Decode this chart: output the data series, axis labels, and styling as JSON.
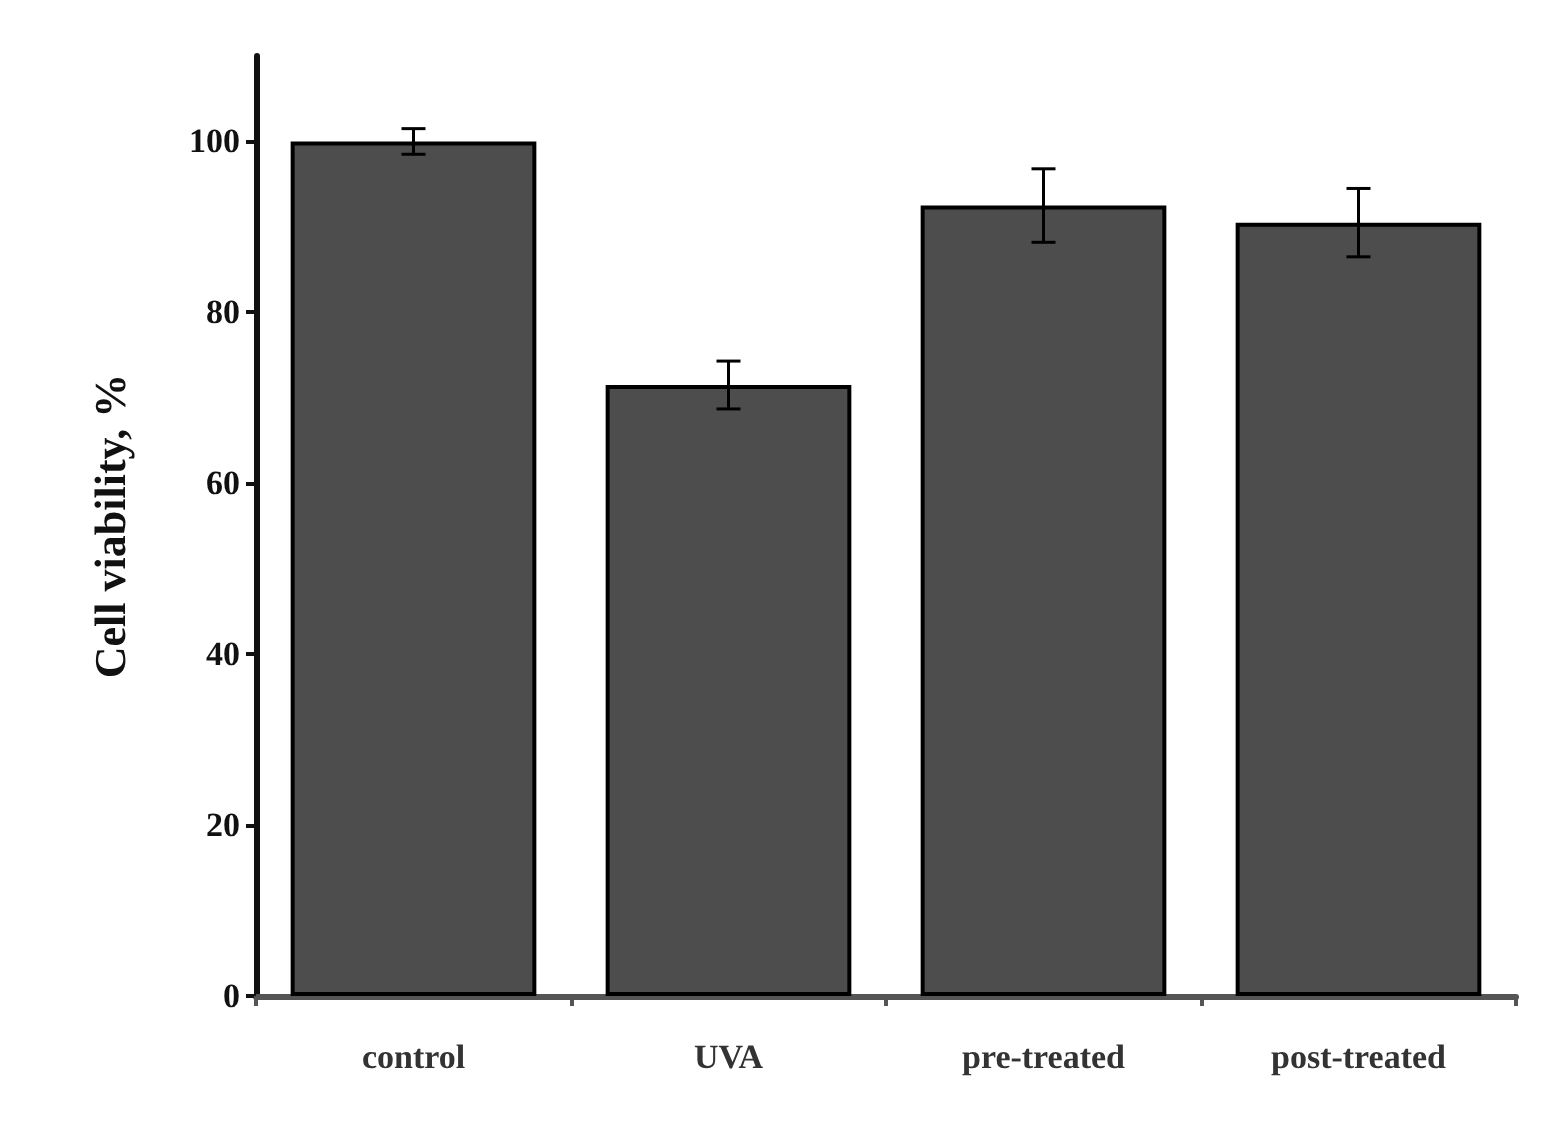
{
  "chart_data": {
    "type": "bar",
    "ylabel": "Cell viability, %",
    "categories": [
      "control",
      "UVA",
      "pre-treated",
      "post-treated"
    ],
    "values": [
      100,
      71.5,
      92.5,
      90.5
    ],
    "errors": [
      1.5,
      2.8,
      4.3,
      4
    ],
    "color": "#4d4d4d",
    "ylim": [
      0,
      110
    ],
    "yticks": [
      0,
      20,
      40,
      60,
      80,
      100
    ],
    "grid": false
  }
}
